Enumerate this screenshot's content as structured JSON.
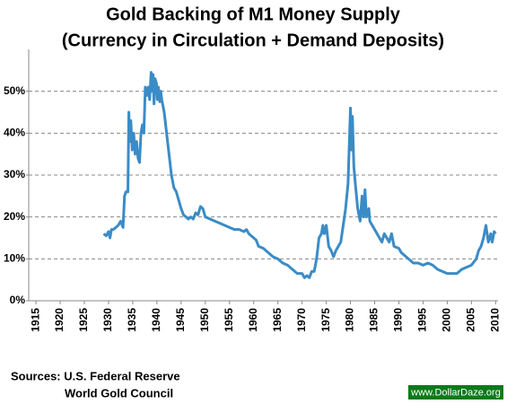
{
  "chart_data": {
    "type": "line",
    "title": "Gold Backing of M1 Money Supply",
    "subtitle": "(Currency in Circulation + Demand Deposits)",
    "sources": [
      "Sources: U.S. Federal Reserve",
      "World Gold Council"
    ],
    "watermark": "www.DollarDaze.org",
    "color": "#3a8cc6",
    "grid": true,
    "x": [
      1929,
      1929.5,
      1930,
      1930.3,
      1930.6,
      1931,
      1931.5,
      1932,
      1932.5,
      1933,
      1933.3,
      1933.6,
      1934,
      1934.2,
      1934.4,
      1934.6,
      1934.9,
      1935.2,
      1935.5,
      1935.8,
      1936.1,
      1936.4,
      1936.7,
      1937,
      1937.3,
      1937.6,
      1937.9,
      1938.2,
      1938.5,
      1938.8,
      1939,
      1939.2,
      1939.4,
      1939.6,
      1939.9,
      1940.1,
      1940.3,
      1940.6,
      1940.8,
      1941,
      1941.5,
      1942,
      1942.5,
      1943,
      1943.5,
      1944,
      1944.5,
      1945,
      1945.5,
      1946,
      1946.5,
      1947,
      1947.5,
      1948,
      1948.5,
      1949,
      1949.5,
      1950,
      1951,
      1952,
      1953,
      1954,
      1955,
      1956,
      1957,
      1958,
      1958.5,
      1959,
      1960,
      1960.5,
      1961,
      1962,
      1963,
      1964,
      1965,
      1966,
      1967,
      1968,
      1969,
      1970,
      1970.5,
      1971,
      1971.5,
      1972,
      1972.5,
      1973,
      1973.5,
      1974,
      1974.3,
      1974.6,
      1975,
      1975.5,
      1976,
      1976.5,
      1977,
      1978,
      1978.5,
      1979,
      1979.5,
      1980,
      1980.2,
      1980.4,
      1980.7,
      1981,
      1981.5,
      1982,
      1982.4,
      1982.7,
      1983,
      1983.3,
      1983.8,
      1984,
      1985,
      1985.5,
      1986,
      1986.5,
      1987,
      1987.5,
      1988,
      1988.5,
      1989,
      1990,
      1990.5,
      1991,
      1992,
      1993,
      1994,
      1995,
      1996,
      1997,
      1998,
      1999,
      2000,
      2001,
      2002,
      2003,
      2004,
      2005,
      2006,
      2006.5,
      2007,
      2007.5,
      2008,
      2008.5,
      2009,
      2009.3,
      2009.7,
      2010
    ],
    "values": [
      16,
      15.5,
      16.5,
      15,
      17,
      17,
      17.5,
      18,
      19,
      17.5,
      25,
      26,
      26,
      45,
      38,
      43,
      36,
      40,
      35,
      38,
      34,
      33,
      40,
      42,
      40,
      51,
      49,
      51,
      48,
      54.5,
      50,
      54,
      47,
      53,
      52,
      48,
      51,
      47.5,
      50,
      48,
      45,
      40,
      35,
      30,
      27,
      26,
      24,
      22,
      20.5,
      20,
      19.5,
      20,
      19.5,
      21,
      20.5,
      22.5,
      22,
      20,
      19.5,
      19,
      18.5,
      18,
      17.5,
      17,
      17,
      16.5,
      17,
      16,
      15,
      14.5,
      13,
      12.5,
      11.5,
      10.5,
      10,
      9,
      8.5,
      7.5,
      6.5,
      6.5,
      5.5,
      6,
      5.5,
      7,
      7,
      10,
      15,
      16,
      18,
      16,
      18,
      13,
      12,
      10.5,
      12,
      14,
      18,
      22,
      28,
      46,
      36,
      44,
      32,
      28,
      22,
      19,
      25,
      20,
      26.5,
      20,
      22,
      19,
      17,
      16,
      15,
      14,
      16,
      15,
      14,
      16,
      13,
      12.5,
      11.5,
      11,
      10,
      9,
      9,
      8.5,
      9,
      8.5,
      7.5,
      7,
      6.5,
      6.5,
      6.5,
      7.5,
      8,
      8.5,
      10,
      12,
      13,
      15,
      18,
      14,
      16,
      14,
      16.5,
      16
    ],
    "xlim": [
      1913.5,
      2010.5
    ],
    "xticks": [
      1915,
      1920,
      1925,
      1930,
      1935,
      1940,
      1945,
      1950,
      1955,
      1960,
      1965,
      1970,
      1975,
      1980,
      1985,
      1990,
      1995,
      2000,
      2005,
      2010
    ],
    "ylim": [
      0,
      60
    ],
    "yticks": [
      {
        "value": 0,
        "label": "0%"
      },
      {
        "value": 10,
        "label": "10%"
      },
      {
        "value": 20,
        "label": "20%"
      },
      {
        "value": 30,
        "label": "30%"
      },
      {
        "value": 40,
        "label": "40%"
      },
      {
        "value": 50,
        "label": "50%"
      }
    ]
  }
}
